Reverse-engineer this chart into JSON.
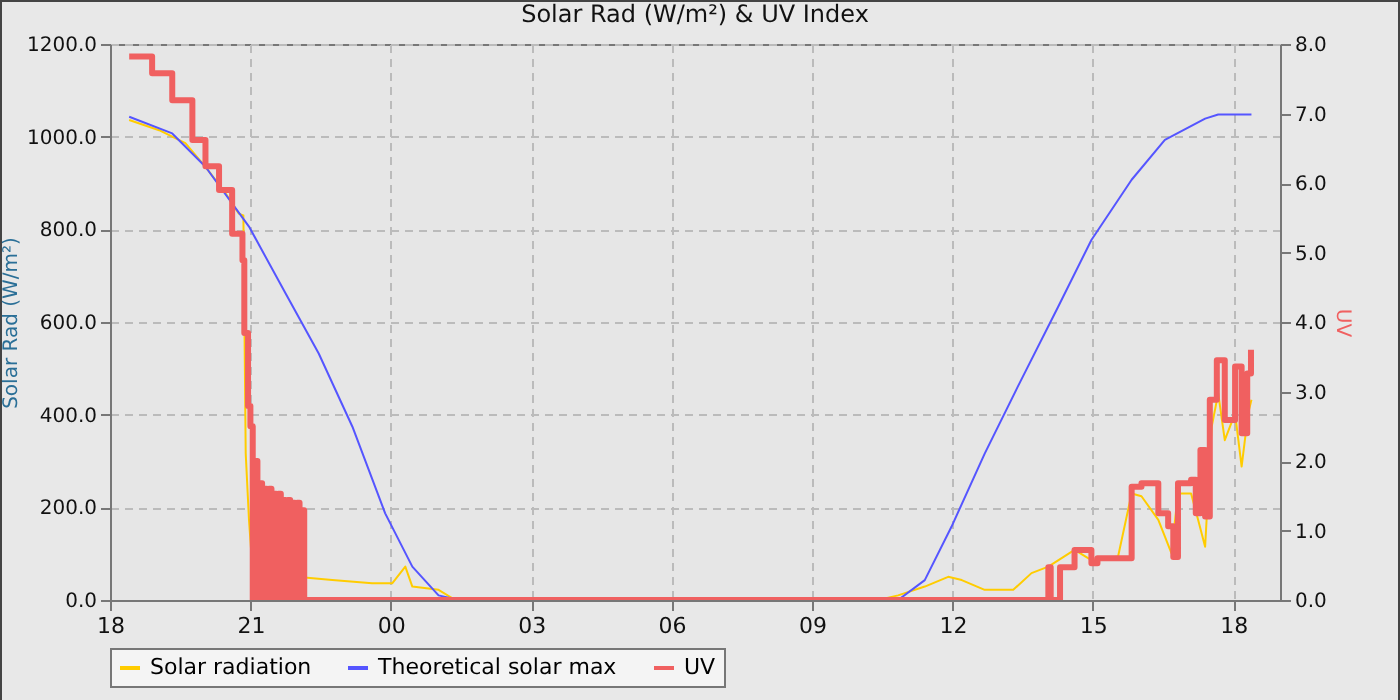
{
  "chart_data": {
    "type": "line",
    "title": "Solar Rad (W/m²) &  UV Index",
    "ylabel": "Solar Rad (W/m²)",
    "y2label": "UV",
    "xlim": [
      18,
      43
    ],
    "xticks": [
      {
        "value": 18,
        "label": "18"
      },
      {
        "value": 21,
        "label": "21"
      },
      {
        "value": 24,
        "label": "00"
      },
      {
        "value": 27,
        "label": "03"
      },
      {
        "value": 30,
        "label": "06"
      },
      {
        "value": 33,
        "label": "09"
      },
      {
        "value": 36,
        "label": "12"
      },
      {
        "value": 39,
        "label": "15"
      },
      {
        "value": 42,
        "label": "18"
      }
    ],
    "ylim": [
      0,
      1200
    ],
    "yticks": [
      {
        "value": 0,
        "label": "0.0"
      },
      {
        "value": 200,
        "label": "200.0"
      },
      {
        "value": 400,
        "label": "400.0"
      },
      {
        "value": 600,
        "label": "600.0"
      },
      {
        "value": 800,
        "label": "800.0"
      },
      {
        "value": 1000,
        "label": "1000.0"
      },
      {
        "value": 1200,
        "label": "1200.0"
      }
    ],
    "y2lim": [
      0,
      8
    ],
    "y2ticks": [
      {
        "value": 0,
        "label": "0.0"
      },
      {
        "value": 1,
        "label": "1.0"
      },
      {
        "value": 2,
        "label": "2.0"
      },
      {
        "value": 3,
        "label": "3.0"
      },
      {
        "value": 4,
        "label": "4.0"
      },
      {
        "value": 5,
        "label": "5.0"
      },
      {
        "value": 6,
        "label": "6.0"
      },
      {
        "value": 7,
        "label": "7.0"
      },
      {
        "value": 8,
        "label": "8.0"
      }
    ],
    "grid": true,
    "legend": "bottom",
    "line_style": "solid",
    "marker": "none",
    "series": [
      {
        "name": "Solar radiation",
        "color": "#ffcc00",
        "x": [
          18.41,
          19.05,
          19.61,
          20.04,
          20.47,
          20.75,
          20.85,
          20.9,
          20.97,
          21.04,
          21.18,
          21.6,
          21.72,
          21.8,
          22.75,
          23.6,
          24.03,
          24.31,
          24.46,
          25.02,
          25.38,
          34.42,
          34.84,
          35.41,
          35.91,
          36.2,
          36.69,
          37.3,
          37.69,
          38.05,
          38.61,
          38.97,
          39.54,
          39.83,
          40.04,
          40.4,
          40.68,
          40.82,
          41.1,
          41.25,
          41.4,
          41.54,
          41.68,
          41.82,
          42.04,
          42.18,
          42.32,
          42.39
        ],
        "values": [
          1036,
          1014,
          986,
          935,
          878,
          834,
          830,
          316,
          173,
          72,
          57,
          57,
          94,
          52,
          43,
          36,
          36,
          72,
          29,
          22,
          0,
          0,
          10,
          29,
          50,
          43,
          22,
          22,
          58,
          72,
          108,
          86,
          94,
          230,
          224,
          173,
          101,
          230,
          230,
          173,
          115,
          374,
          446,
          345,
          403,
          288,
          403,
          432
        ]
      },
      {
        "name": "Theoretical solar max",
        "color": "#5555ff",
        "x": [
          18.41,
          19.33,
          20.04,
          20.97,
          21.75,
          22.46,
          23.18,
          23.88,
          24.46,
          25.02,
          25.45,
          34.84,
          35.41,
          35.98,
          36.69,
          37.4,
          38.26,
          38.97,
          39.83,
          40.54,
          41.4,
          41.68,
          42.39
        ],
        "values": [
          1043,
          1007,
          935,
          806,
          662,
          532,
          374,
          187,
          72,
          10,
          0,
          0,
          43,
          158,
          316,
          461,
          633,
          777,
          907,
          993,
          1039,
          1048,
          1048
        ]
      },
      {
        "name": "UV",
        "color": "#f06060",
        "type": "step",
        "axis": "y2",
        "x": [
          18.41,
          18.9,
          19.33,
          19.76,
          20.04,
          20.33,
          20.61,
          20.83,
          20.87,
          20.95,
          21.0,
          21.05,
          21.1,
          21.15,
          21.2,
          21.25,
          21.3,
          21.35,
          21.4,
          21.45,
          21.5,
          21.55,
          21.6,
          21.65,
          21.7,
          21.75,
          21.8,
          21.85,
          21.9,
          21.95,
          22.0,
          22.05,
          22.1,
          22.15,
          22.2,
          38.0,
          38.05,
          38.1,
          38.3,
          38.61,
          38.97,
          39.1,
          39.54,
          39.83,
          40.04,
          40.4,
          40.61,
          40.72,
          40.82,
          41.1,
          41.2,
          41.3,
          41.4,
          41.5,
          41.65,
          41.82,
          42.04,
          42.18,
          42.3,
          42.38
        ],
        "values": [
          7.82,
          7.58,
          7.19,
          6.62,
          6.24,
          5.9,
          5.27,
          4.89,
          3.84,
          2.79,
          2.5,
          0,
          2.0,
          0,
          1.68,
          0,
          1.6,
          0,
          1.6,
          0,
          1.53,
          0,
          1.53,
          0,
          1.44,
          0,
          1.44,
          0,
          1.4,
          0,
          1.4,
          0,
          1.29,
          0,
          0,
          0,
          0.47,
          0,
          0.47,
          0.72,
          0.53,
          0.6,
          0.6,
          1.63,
          1.68,
          1.25,
          1.06,
          0.62,
          1.68,
          1.73,
          1.25,
          2.16,
          1.2,
          2.88,
          3.45,
          2.59,
          3.36,
          2.4,
          3.26,
          3.6
        ]
      }
    ]
  }
}
